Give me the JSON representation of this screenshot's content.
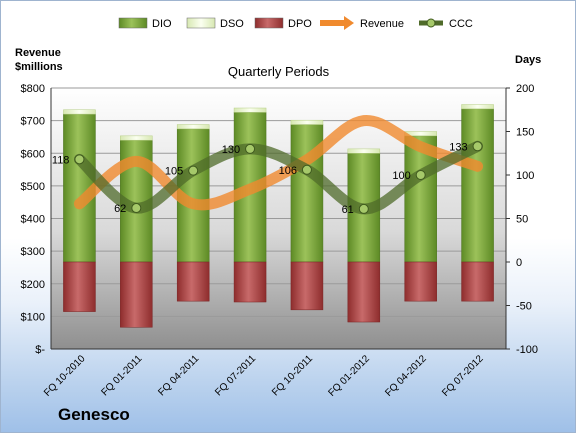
{
  "chart_data": {
    "type": "bar",
    "title": "Quarterly Periods",
    "left_axis_title": [
      "Revenue",
      "$millions"
    ],
    "right_axis_title": "Days",
    "categories": [
      "FQ 10-2010",
      "FQ 01-2011",
      "FQ 04-2011",
      "FQ 07-2011",
      "FQ 10-2011",
      "FQ 01-2012",
      "FQ 04-2012",
      "FQ 07-2012"
    ],
    "left_axis": {
      "min": 0,
      "max": 800,
      "step": 100,
      "tick_labels": [
        "$-",
        "$100",
        "$200",
        "$300",
        "$400",
        "$500",
        "$600",
        "$700",
        "$800"
      ]
    },
    "right_axis": {
      "min": -100,
      "max": 200,
      "step": 50,
      "tick_labels": [
        "-100",
        "-50",
        "0",
        "50",
        "100",
        "150",
        "200"
      ]
    },
    "series": [
      {
        "name": "DIO",
        "axis": "right",
        "color": "#7aa33a",
        "values": [
          170,
          140,
          153,
          172,
          158,
          125,
          145,
          176
        ]
      },
      {
        "name": "DSO",
        "axis": "right",
        "color": "#eef6d6",
        "values": [
          5,
          5,
          5,
          5,
          5,
          5,
          5,
          5
        ]
      },
      {
        "name": "DPO",
        "axis": "right",
        "color": "#b54a4a",
        "values": [
          -57,
          -75,
          -45,
          -46,
          -55,
          -69,
          -45,
          -45
        ]
      },
      {
        "name": "Revenue",
        "axis": "left",
        "color": "#f08a2e",
        "values": [
          445,
          575,
          445,
          490,
          580,
          700,
          620,
          560
        ]
      },
      {
        "name": "CCC",
        "axis": "right",
        "color": "#4f6b2a",
        "values": [
          118,
          62,
          105,
          130,
          106,
          61,
          100,
          133
        ],
        "point_labels": [
          "118",
          "62",
          "105",
          "130",
          "106",
          "61",
          "100",
          "133"
        ]
      }
    ],
    "legend": [
      "DIO",
      "DSO",
      "DPO",
      "Revenue",
      "CCC"
    ],
    "legend_position": "top",
    "grid": true
  },
  "company": "Genesco"
}
